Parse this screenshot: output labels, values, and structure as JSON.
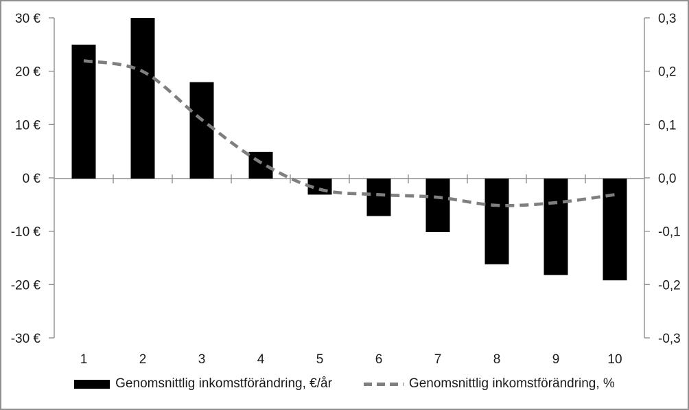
{
  "chart_data": {
    "type": "combo",
    "title": "",
    "categories": [
      "1",
      "2",
      "3",
      "4",
      "5",
      "6",
      "7",
      "8",
      "9",
      "10"
    ],
    "series": [
      {
        "name": "Genomsnittlig inkomstförändring, €/år",
        "type": "bar",
        "axis": "left",
        "color": "#000000",
        "values": [
          25,
          30,
          18,
          5,
          -3,
          -7,
          -10,
          -16,
          -18,
          -19
        ]
      },
      {
        "name": "Genomsnittlig inkomstförändring, %",
        "type": "line",
        "axis": "right",
        "color": "#7f7f7f",
        "style": "dashed",
        "smooth": true,
        "values": [
          0.22,
          0.2,
          0.11,
          0.03,
          -0.02,
          -0.03,
          -0.035,
          -0.05,
          -0.045,
          -0.03
        ]
      }
    ],
    "left_axis": {
      "min": -30,
      "max": 30,
      "step": 10,
      "tick_labels": [
        "30 €",
        "20 €",
        "10 €",
        "0 €",
        "-10 €",
        "-20 €",
        "-30 €"
      ]
    },
    "right_axis": {
      "min": -0.3,
      "max": 0.3,
      "step": 0.1,
      "tick_labels": [
        "0,3",
        "0,2",
        "0,1",
        "0,0",
        "-0,1",
        "-0,2",
        "-0,3"
      ]
    },
    "xlabel": "",
    "ylabel": "",
    "grid": "zero-line-only",
    "legend_position": "bottom",
    "colors": {
      "axis_line": "#8e8e8e",
      "text": "#1a1a1a",
      "background": "#ffffff",
      "frame_border": "#8f8f8f"
    }
  }
}
